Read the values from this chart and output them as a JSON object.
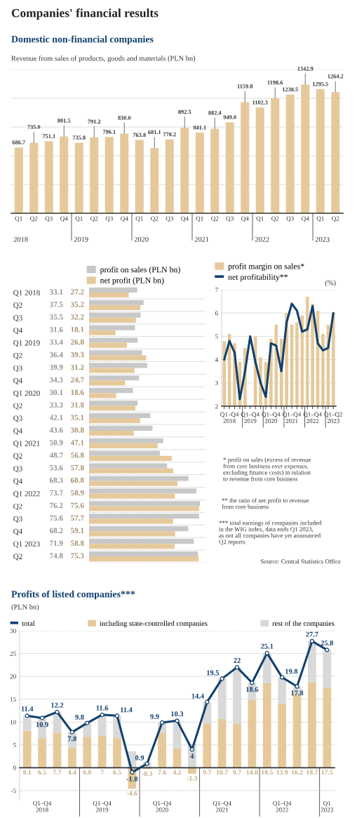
{
  "chart_data": [
    {
      "type": "bar",
      "title": "Companies' financial results",
      "subtitle": "Domestic non-financial companies",
      "ylabel": "Revenue from sales of products, goods and materials (PLN bn)",
      "categories": [
        "Q1",
        "Q2",
        "Q3",
        "Q4",
        "Q1",
        "Q2",
        "Q3",
        "Q4",
        "Q1",
        "Q2",
        "Q3",
        "Q4",
        "Q1",
        "Q2",
        "Q3",
        "Q4",
        "Q1",
        "Q2",
        "Q3",
        "Q4",
        "Q1",
        "Q2"
      ],
      "values": [
        686.7,
        735.0,
        751.1,
        801.5,
        735.8,
        791.2,
        796.1,
        830.0,
        763.8,
        681.1,
        770.2,
        892.5,
        841.1,
        882.4,
        949.0,
        1159.8,
        1102.3,
        1198.6,
        1238.5,
        1342.9,
        1295.5,
        1264.2
      ],
      "color": "#e6c99b",
      "ylim": [
        0,
        1500
      ],
      "yticks": [
        {
          "value": 300,
          "label": null
        },
        {
          "value": 600,
          "label": null
        },
        {
          "value": 900,
          "label": null
        },
        {
          "value": 1200,
          "label": null
        },
        {
          "value": 1500,
          "label": null
        }
      ],
      "grid": "y",
      "tick_labels": "x",
      "value_labels": [
        "686.7",
        "735.0",
        "751.1",
        "801.5",
        "735.8",
        "791.2",
        "796.1",
        "830.0",
        "763.8",
        "681.1",
        "770.2",
        "892.5",
        "841.1",
        "882.4",
        "949.0",
        "1159.8",
        "1102.3",
        "1198.6",
        "1238.5",
        "1342.9",
        "1295.5",
        "1264.2"
      ],
      "annotations": [
        "2018",
        "2019",
        "2020",
        "2021",
        "2022",
        "2023"
      ]
    },
    {
      "type": "bar",
      "orientation": "horizontal",
      "categories": [
        "Q1 2018",
        "Q2",
        "Q3",
        "Q4",
        "Q1 2019",
        "Q2",
        "Q3",
        "Q4",
        "Q1 2020",
        "Q2",
        "Q3",
        "Q4",
        "Q1 2021",
        "Q2",
        "Q3",
        "Q4",
        "Q1 2022",
        "Q2",
        "Q3",
        "Q4",
        "Q1 2023",
        "Q2"
      ],
      "series": [
        {
          "name": "profit on sales (PLN bn)",
          "color": "#c8c8c8",
          "values": [
            33.1,
            37.5,
            35.5,
            31.6,
            33.4,
            36.4,
            39.9,
            34.3,
            30.1,
            33.3,
            42.1,
            43.6,
            50.9,
            48.7,
            53.6,
            68.3,
            73.7,
            76.2,
            75.6,
            68.2,
            71.9,
            74.8
          ],
          "value_labels": [
            "33.1",
            "37.5",
            "35.5",
            "31.6",
            "33.4",
            "36.4",
            "39.9",
            "34.3",
            "30.1",
            "33.3",
            "42.1",
            "43.6",
            "50.9",
            "48.7",
            "53.6",
            "68.3",
            "73.7",
            "76.2",
            "75.6",
            "68.2",
            "71.9",
            "74.8"
          ]
        },
        {
          "name": "net profit (PLN bn)",
          "color": "#e6c99b",
          "values": [
            27.2,
            35.2,
            32.2,
            18.1,
            26.0,
            39.3,
            31.2,
            24.7,
            18.6,
            31.8,
            35.1,
            30.8,
            47.1,
            56.8,
            57.8,
            60.8,
            58.9,
            75.6,
            57.7,
            59.1,
            58.8,
            75.3
          ],
          "value_labels": [
            "27.2",
            "35.2",
            "32.2",
            "18.1",
            "26.0",
            "39.3",
            "31.2",
            "24.7",
            "18.6",
            "31.8",
            "35.1",
            "30.8",
            "47.1",
            "56.8",
            "57.8",
            "60.8",
            "58.9",
            "75.6",
            "57.7",
            "59.1",
            "58.8",
            "75.3"
          ]
        }
      ],
      "xlim": [
        0,
        80
      ],
      "grid": "y",
      "legend": "top",
      "tick_labels": "y"
    },
    {
      "type": "bar",
      "categories": [
        null,
        "Q1–Q4\n2018",
        null,
        null,
        null,
        "Q1–Q4\n2019",
        null,
        null,
        null,
        "Q1–Q4\n2020",
        null,
        null,
        null,
        "Q1–Q4\n2021",
        null,
        null,
        null,
        "Q1–Q4\n2022",
        null,
        null,
        null,
        "Q1–Q2\n2023"
      ],
      "series": [
        {
          "name": "profit margin on sales*",
          "type": "bar",
          "color": "#e6c99b",
          "values": [
            4.8,
            5.1,
            4.7,
            3.9,
            4.5,
            null,
            5.0,
            4.1,
            3.9,
            4.9,
            5.5,
            4.9,
            6.0,
            5.5,
            5.6,
            5.9,
            6.7,
            6.4,
            6.1,
            5.1,
            5.5,
            6.0
          ]
        },
        {
          "name": "net profitability**",
          "type": "line",
          "color": "#11406e",
          "values": [
            4.0,
            4.8,
            4.3,
            2.3,
            3.5,
            5.0,
            3.9,
            3.0,
            2.4,
            4.7,
            4.6,
            3.5,
            5.6,
            6.4,
            6.1,
            5.2,
            5.3,
            6.3,
            4.7,
            4.4,
            4.5,
            6.0
          ]
        }
      ],
      "ylabel": "(%)",
      "ylim": [
        2,
        7
      ],
      "yticks": [
        2,
        3,
        4,
        5,
        6,
        7
      ],
      "grid": "y",
      "legend": "top",
      "annotations": [
        "* profit on sales (excess of revenue\nfrom core business over expenses,\nexcluding finance costs) in relation\nto revenue from core business",
        "** the ratio of net profit to revenue\nfrom core business",
        "*** total earnings of companies included\nin the WIG index, data ends Q1 2023,\nas not all companies have yet announced\nQ2 reports",
        "Source: Central Statistics Office"
      ]
    },
    {
      "type": "bar",
      "stacked": true,
      "title": "Profits of listed companies***",
      "ylabel": "(PLN bn)",
      "categories": [
        null,
        "Q1–Q4\n2018",
        null,
        null,
        null,
        "Q1–Q4\n2019",
        null,
        null,
        null,
        "Q1–Q4\n2020",
        null,
        null,
        null,
        "Q1–Q4\n2021",
        null,
        null,
        null,
        "Q1–Q4\n2022",
        null,
        null,
        "Q1\n2023"
      ],
      "series": [
        {
          "name": "total",
          "type": "line",
          "color": "#11406e",
          "values": [
            11.4,
            10.9,
            12.2,
            7.8,
            9.8,
            11.6,
            11.4,
            -1.0,
            0.9,
            9.9,
            10.3,
            4,
            14.4,
            19.5,
            22,
            18.6,
            25.1,
            19.8,
            17.8,
            27.7,
            25.8
          ],
          "value_labels": [
            "11.4",
            "10.9",
            "12.2",
            "7.8",
            "9.8",
            "11.6",
            "11.4",
            "-1.0",
            "0.9",
            "9.9",
            "10.3",
            "4",
            "14.4",
            "19.5",
            "22",
            "18.6",
            "25.1",
            "19.8",
            "17.8",
            "27.7",
            "25.8"
          ]
        },
        {
          "name": "including state-controlled companies",
          "color": "#e6c99b",
          "values": [
            8.1,
            6.5,
            7.7,
            4.4,
            6.8,
            7,
            6.5,
            -4.6,
            -0.3,
            7.6,
            4.2,
            -1.3,
            9.7,
            10.7,
            9.7,
            14.8,
            18.5,
            13.9,
            16.2,
            18.7,
            17.5
          ],
          "value_labels": [
            "8.1",
            "6.5",
            "7.7",
            "4.4",
            "6.8",
            "7",
            "6.5",
            "-4.6",
            "-0.3",
            "7.6",
            "4.2",
            "-1.3",
            "9.7",
            "10.7",
            "9.7",
            "14.8",
            "18.5",
            "13.9",
            "16.2",
            "18.7",
            "17.5"
          ]
        },
        {
          "name": "rest of the companies",
          "color": "#d9d9d9",
          "values": [
            3.3,
            4.4,
            4.5,
            3.4,
            3.0,
            4.6,
            4.9,
            3.6,
            1.2,
            2.3,
            6.1,
            5.3,
            4.7,
            8.8,
            12.3,
            3.8,
            6.6,
            5.9,
            1.6,
            9.0,
            8.3
          ]
        }
      ],
      "ylim": [
        -7,
        30
      ],
      "yticks": [
        -5,
        0,
        5,
        10,
        15,
        20,
        25,
        30
      ],
      "grid": "y",
      "legend": "top",
      "marker": "circle"
    }
  ]
}
